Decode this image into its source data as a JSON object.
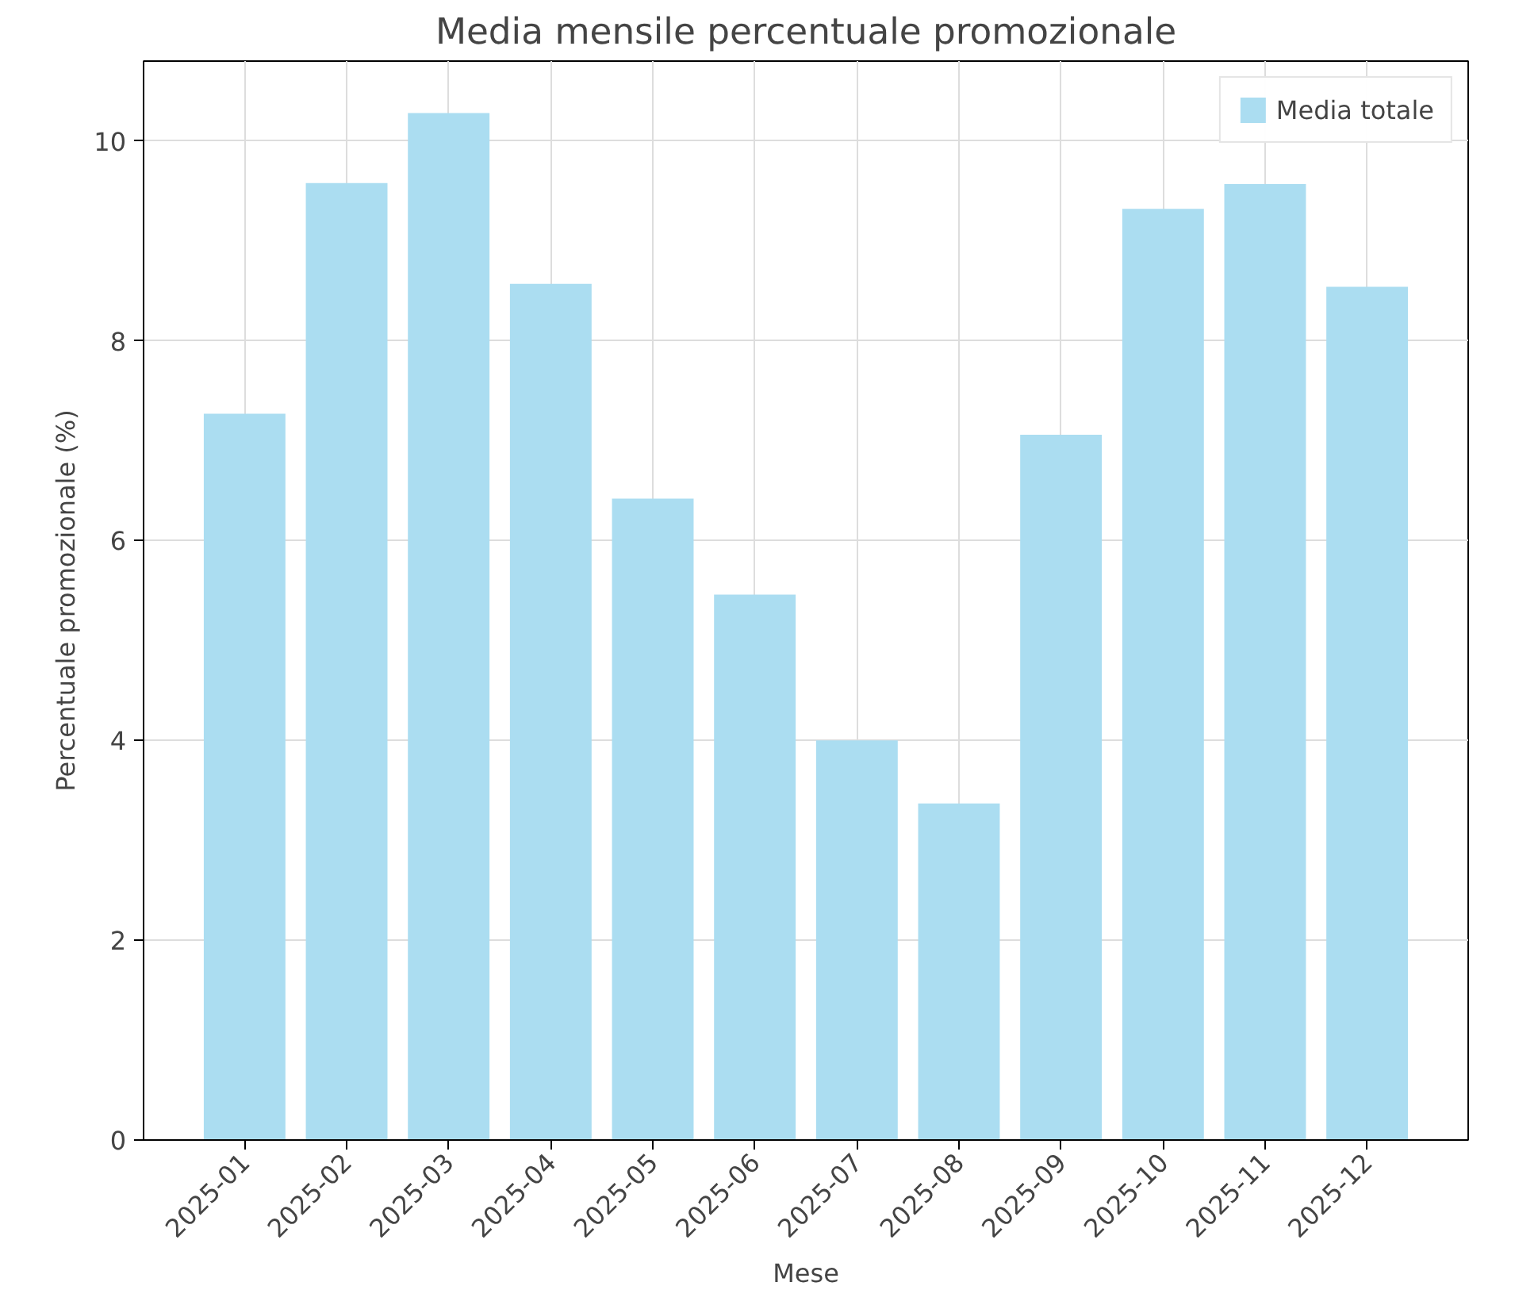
{
  "chart_data": {
    "type": "bar",
    "title": "Media mensile percentuale promozionale",
    "xlabel": "Mese",
    "ylabel": "Percentuale promozionale (%)",
    "categories": [
      "2025-01",
      "2025-02",
      "2025-03",
      "2025-04",
      "2025-05",
      "2025-06",
      "2025-07",
      "2025-08",
      "2025-09",
      "2025-10",
      "2025-11",
      "2025-12"
    ],
    "series": [
      {
        "name": "Media totale",
        "color": "#abddf1",
        "values": [
          7.27,
          9.58,
          10.28,
          8.57,
          6.42,
          5.46,
          4.0,
          3.37,
          7.06,
          9.32,
          9.57,
          8.54
        ]
      }
    ],
    "ylim": [
      0,
      10.8
    ],
    "yticks": [
      0,
      2,
      4,
      6,
      8,
      10
    ],
    "grid": true,
    "legend": "top right"
  }
}
